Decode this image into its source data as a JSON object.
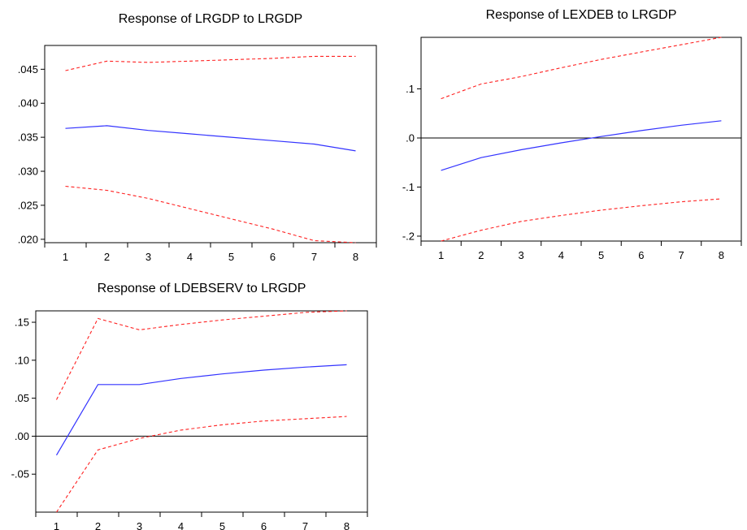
{
  "colors": {
    "central": "#3333ff",
    "band": "#ff2020",
    "axis": "#000000"
  },
  "chart_data": [
    {
      "type": "line",
      "title": "Response of LRGDP to LRGDP",
      "x": [
        1,
        2,
        3,
        4,
        5,
        6,
        7,
        8
      ],
      "x_tick_labels": [
        "1",
        "2",
        "3",
        "4",
        "5",
        "6",
        "7",
        "8"
      ],
      "y_tick_labels": [
        ".045",
        ".040",
        ".035",
        ".030",
        ".025",
        ".020"
      ],
      "y_ticks": [
        0.045,
        0.04,
        0.035,
        0.03,
        0.025,
        0.02
      ],
      "ylim": [
        0.0195,
        0.0485
      ],
      "zero_line": false,
      "series": [
        {
          "role": "response",
          "values": [
            0.0363,
            0.0367,
            0.036,
            0.0355,
            0.035,
            0.0345,
            0.034,
            0.033
          ]
        },
        {
          "role": "upper",
          "values": [
            0.0448,
            0.0462,
            0.046,
            0.0462,
            0.0464,
            0.0466,
            0.0469,
            0.0469
          ]
        },
        {
          "role": "lower",
          "values": [
            0.0278,
            0.0272,
            0.026,
            0.0245,
            0.023,
            0.0215,
            0.0198,
            0.0195
          ]
        }
      ]
    },
    {
      "type": "line",
      "title": "Response of LEXDEB to LRGDP",
      "x": [
        1,
        2,
        3,
        4,
        5,
        6,
        7,
        8
      ],
      "x_tick_labels": [
        "1",
        "2",
        "3",
        "4",
        "5",
        "6",
        "7",
        "8"
      ],
      "y_tick_labels": [
        ".1",
        ".0",
        "-.1",
        "-.2"
      ],
      "y_ticks": [
        0.1,
        0.0,
        -0.1,
        -0.2
      ],
      "ylim": [
        -0.21,
        0.205
      ],
      "zero_line": true,
      "series": [
        {
          "role": "response",
          "values": [
            -0.066,
            -0.04,
            -0.024,
            -0.01,
            0.003,
            0.015,
            0.026,
            0.035
          ]
        },
        {
          "role": "upper",
          "values": [
            0.08,
            0.11,
            0.125,
            0.143,
            0.16,
            0.175,
            0.19,
            0.205
          ]
        },
        {
          "role": "lower",
          "values": [
            -0.21,
            -0.188,
            -0.17,
            -0.158,
            -0.147,
            -0.138,
            -0.13,
            -0.124
          ]
        }
      ]
    },
    {
      "type": "line",
      "title": "Response of LDEBSERV to LRGDP",
      "x": [
        1,
        2,
        3,
        4,
        5,
        6,
        7,
        8
      ],
      "x_tick_labels": [
        "1",
        "2",
        "3",
        "4",
        "5",
        "6",
        "7",
        "8"
      ],
      "y_tick_labels": [
        ".15",
        ".10",
        ".05",
        ".00",
        "-.05"
      ],
      "y_ticks": [
        0.15,
        0.1,
        0.05,
        0.0,
        -0.05
      ],
      "ylim": [
        -0.1,
        0.165
      ],
      "zero_line": true,
      "series": [
        {
          "role": "response",
          "values": [
            -0.025,
            0.068,
            0.068,
            0.076,
            0.082,
            0.087,
            0.091,
            0.094
          ]
        },
        {
          "role": "upper",
          "values": [
            0.048,
            0.155,
            0.14,
            0.147,
            0.153,
            0.158,
            0.163,
            0.165
          ]
        },
        {
          "role": "lower",
          "values": [
            -0.1,
            -0.018,
            -0.003,
            0.008,
            0.015,
            0.02,
            0.023,
            0.026
          ]
        }
      ]
    }
  ]
}
